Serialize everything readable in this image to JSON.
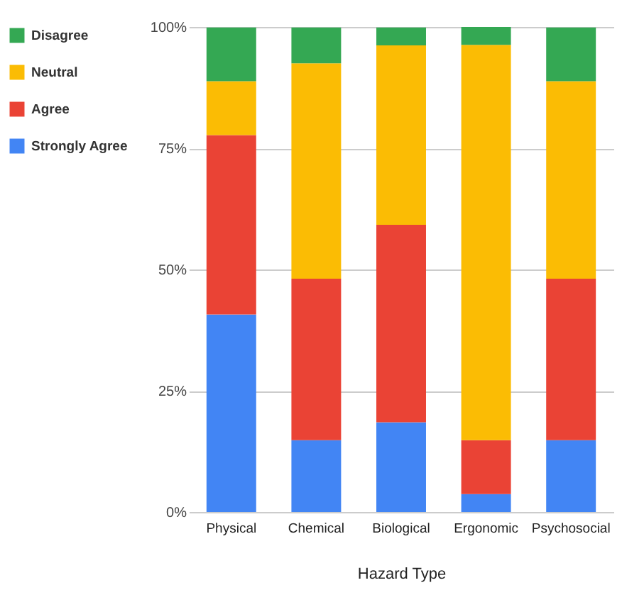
{
  "chart_data": {
    "type": "bar",
    "stacked": true,
    "xlabel": "Hazard Type",
    "categories": [
      "Physical",
      "Chemical",
      "Biological",
      "Ergonomic",
      "Psychosocial"
    ],
    "series": [
      {
        "name": "Strongly Agree",
        "color": "#4285f4",
        "values": [
          40.7,
          14.8,
          18.5,
          3.7,
          14.8
        ]
      },
      {
        "name": "Agree",
        "color": "#ea4335",
        "values": [
          37.0,
          33.3,
          40.7,
          11.1,
          33.3
        ]
      },
      {
        "name": "Neutral",
        "color": "#fbbc04",
        "values": [
          11.1,
          44.4,
          37.0,
          81.5,
          40.7
        ]
      },
      {
        "name": "Disagree",
        "color": "#34a853",
        "values": [
          11.1,
          7.4,
          3.7,
          3.7,
          11.1
        ]
      }
    ],
    "ylim": [
      0,
      100
    ],
    "yticks": [
      {
        "value": 0,
        "label": "0%"
      },
      {
        "value": 25,
        "label": "25%"
      },
      {
        "value": 50,
        "label": "50%"
      },
      {
        "value": 75,
        "label": "75%"
      },
      {
        "value": 100,
        "label": "100%"
      }
    ],
    "grid": "y",
    "legend": "left"
  }
}
